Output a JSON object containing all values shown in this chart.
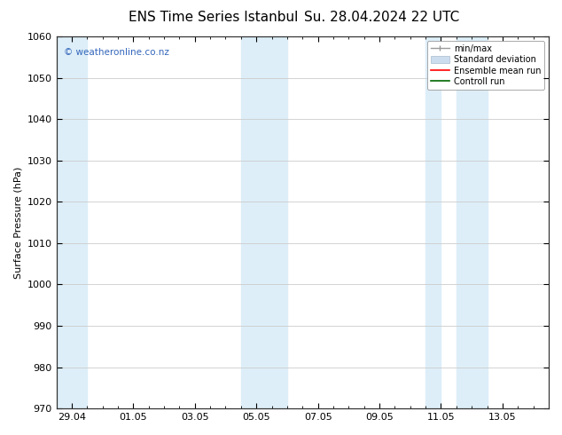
{
  "title": "ENS Time Series Istanbul",
  "title2": "Su. 28.04.2024 22 UTC",
  "ylabel": "Surface Pressure (hPa)",
  "ylim": [
    970,
    1060
  ],
  "yticks": [
    970,
    980,
    990,
    1000,
    1010,
    1020,
    1030,
    1040,
    1050,
    1060
  ],
  "xtick_labels": [
    "29.04",
    "01.05",
    "03.05",
    "05.05",
    "07.05",
    "09.05",
    "11.05",
    "13.05"
  ],
  "xtick_positions": [
    0,
    2,
    4,
    6,
    8,
    10,
    12,
    14
  ],
  "xlim": [
    -0.5,
    15.5
  ],
  "shaded_regions": [
    {
      "xmin": -0.5,
      "xmax": 0.5,
      "color": "#ddeef8"
    },
    {
      "xmin": 5.5,
      "xmax": 7.0,
      "color": "#ddeef8"
    },
    {
      "xmin": 11.5,
      "xmax": 12.0,
      "color": "#ddeef8"
    },
    {
      "xmin": 12.5,
      "xmax": 13.5,
      "color": "#ddeef8"
    }
  ],
  "watermark": "© weatheronline.co.nz",
  "watermark_color": "#3366bb",
  "legend_items": [
    {
      "label": "min/max"
    },
    {
      "label": "Standard deviation"
    },
    {
      "label": "Ensemble mean run"
    },
    {
      "label": "Controll run"
    }
  ],
  "grid_color": "#cccccc",
  "bg_color": "#ffffff",
  "title_fontsize": 11,
  "axis_fontsize": 8,
  "tick_fontsize": 8
}
